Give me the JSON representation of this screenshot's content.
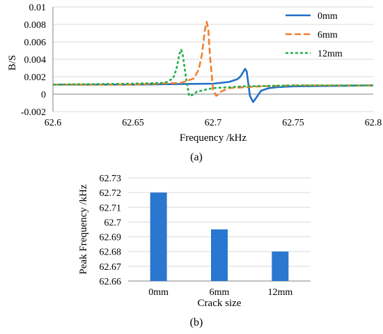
{
  "colors": {
    "series_0mm": "#1f6fc5",
    "series_6mm": "#f07f2f",
    "series_12mm": "#22b04a",
    "bar": "#2a77cf",
    "grid": "#d9d9d9",
    "axis": "#808080"
  },
  "chart_data": [
    {
      "type": "line",
      "caption": "(a)",
      "title": "",
      "xlabel": "Frequency /kHz",
      "ylabel": "B/S",
      "xlim": [
        62.6,
        62.8
      ],
      "ylim": [
        -0.002,
        0.01
      ],
      "x_ticks": [
        62.6,
        62.65,
        62.7,
        62.75,
        62.8
      ],
      "x_tick_labels": [
        "62.6",
        "62.65",
        "62.7",
        "62.75",
        "62.8"
      ],
      "y_ticks": [
        -0.002,
        0,
        0.002,
        0.004,
        0.006,
        0.008,
        0.01
      ],
      "y_tick_labels": [
        "-0.002",
        "0",
        "0.002",
        "0.004",
        "0.006",
        "0.008",
        "0.01"
      ],
      "grid": "horizontal",
      "legend_position": "top-right",
      "series": [
        {
          "name": "0mm",
          "line_style": "solid",
          "x": [
            62.6,
            62.65,
            62.7,
            62.71,
            62.715,
            62.717,
            62.719,
            62.72,
            62.721,
            62.722,
            62.723,
            62.725,
            62.727,
            62.73,
            62.735,
            62.74,
            62.75,
            62.8
          ],
          "y": [
            0.0011,
            0.0011,
            0.0012,
            0.0014,
            0.0017,
            0.002,
            0.0026,
            0.0029,
            0.0026,
            0.0012,
            -0.0002,
            -0.0009,
            -0.0004,
            0.0004,
            0.0007,
            0.0008,
            0.0009,
            0.001
          ]
        },
        {
          "name": "6mm",
          "line_style": "dashed",
          "x": [
            62.6,
            62.65,
            62.68,
            62.688,
            62.691,
            62.693,
            62.695,
            62.696,
            62.697,
            62.698,
            62.7,
            62.702,
            62.705,
            62.71,
            62.73,
            62.75,
            62.8
          ],
          "y": [
            0.0011,
            0.0011,
            0.0013,
            0.0018,
            0.0028,
            0.0045,
            0.0075,
            0.0083,
            0.0075,
            0.0045,
            0.0005,
            -0.0002,
            0.0003,
            0.0007,
            0.0009,
            0.001,
            0.001
          ]
        },
        {
          "name": "12mm",
          "line_style": "dotted",
          "x": [
            62.6,
            62.65,
            62.67,
            62.675,
            62.677,
            62.679,
            62.68,
            62.681,
            62.683,
            62.685,
            62.687,
            62.69,
            62.695,
            62.7,
            62.72,
            62.75,
            62.8
          ],
          "y": [
            0.0011,
            0.0012,
            0.0013,
            0.0018,
            0.0028,
            0.0046,
            0.0051,
            0.0046,
            0.002,
            -0.0002,
            -0.0001,
            0.0003,
            0.0005,
            0.0007,
            0.0009,
            0.001,
            0.001
          ]
        }
      ]
    },
    {
      "type": "bar",
      "caption": "(b)",
      "title": "",
      "xlabel": "Crack size",
      "ylabel": "Peak Frequency /kHz",
      "categories": [
        "0mm",
        "6mm",
        "12mm"
      ],
      "values": [
        62.72,
        62.695,
        62.68
      ],
      "ylim": [
        62.66,
        62.73
      ],
      "y_ticks": [
        62.66,
        62.67,
        62.68,
        62.69,
        62.7,
        62.71,
        62.72,
        62.73
      ],
      "y_tick_labels": [
        "62.66",
        "62.67",
        "62.68",
        "62.69",
        "62.7",
        "62.71",
        "62.72",
        "62.73"
      ],
      "grid": "horizontal"
    }
  ]
}
